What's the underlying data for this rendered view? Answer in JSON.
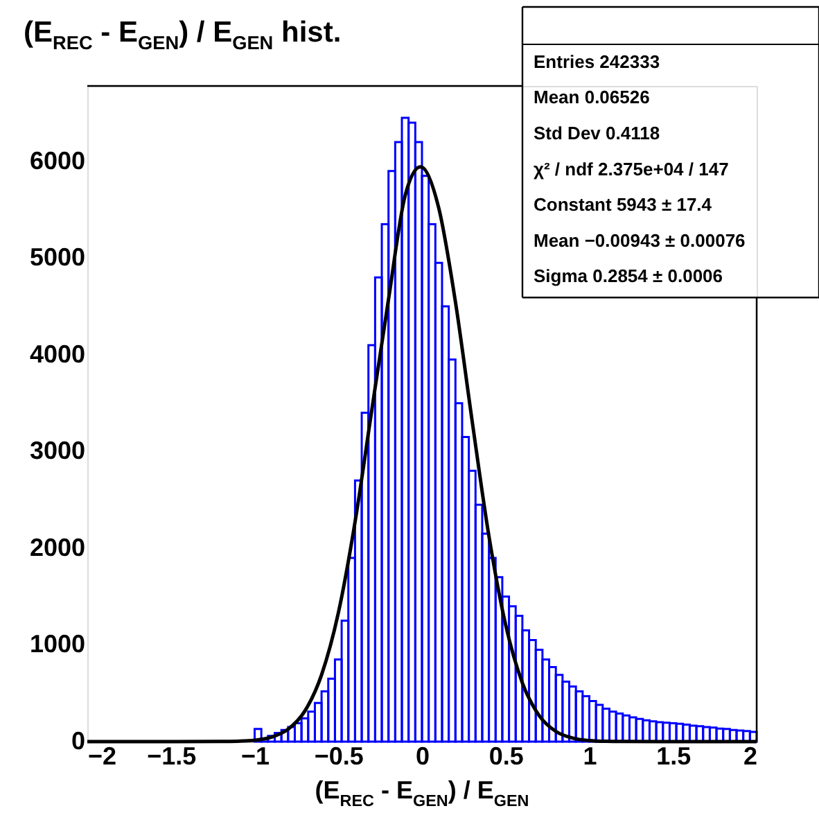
{
  "chart_data": {
    "type": "histogram",
    "title": "(E$_{REC}$ - E$_{GEN}$) / E$_{GEN}$ hist.",
    "xlabel": "(E$_{REC}$ - E$_{GEN}$) / E$_{GEN}$",
    "series": [
      {
        "type": "histogram",
        "color": "#0000ff",
        "bins": [
          -1.0,
          -0.96,
          -0.92,
          -0.88,
          -0.84,
          -0.8,
          -0.76,
          -0.72,
          -0.68,
          -0.64,
          -0.6,
          -0.56,
          -0.52,
          -0.48,
          -0.44,
          -0.4,
          -0.36,
          -0.32,
          -0.28,
          -0.24,
          -0.2,
          -0.16,
          -0.12,
          -0.08,
          -0.04,
          0.0,
          0.04,
          0.08,
          0.12,
          0.16,
          0.2,
          0.24,
          0.28,
          0.32,
          0.36,
          0.4,
          0.44,
          0.48,
          0.52,
          0.56,
          0.6,
          0.64,
          0.68,
          0.72,
          0.76,
          0.8,
          0.84,
          0.88,
          0.92,
          0.96,
          1.0,
          1.04,
          1.08,
          1.12,
          1.16,
          1.2,
          1.24,
          1.28,
          1.32,
          1.36,
          1.4,
          1.44,
          1.48,
          1.52,
          1.56,
          1.6,
          1.64,
          1.68,
          1.72,
          1.76,
          1.8,
          1.84,
          1.88,
          1.92,
          1.96,
          2.0
        ],
        "values": [
          130,
          30,
          60,
          90,
          120,
          150,
          190,
          240,
          310,
          400,
          520,
          650,
          850,
          1250,
          1900,
          2700,
          3400,
          4100,
          4800,
          5350,
          5900,
          6200,
          6450,
          6400,
          6200,
          5850,
          5350,
          4950,
          4500,
          3950,
          3500,
          3150,
          2800,
          2450,
          2150,
          1900,
          1700,
          1500,
          1400,
          1300,
          1150,
          1050,
          950,
          850,
          770,
          690,
          620,
          570,
          520,
          470,
          420,
          380,
          340,
          310,
          290,
          270,
          250,
          235,
          220,
          210,
          200,
          195,
          190,
          185,
          175,
          165,
          160,
          150,
          145,
          135,
          130,
          120,
          115,
          110,
          100
        ]
      },
      {
        "type": "line",
        "color": "#000000",
        "x": [
          -2.0,
          -1.5,
          -1.2,
          -1.1,
          -1.0,
          -0.9,
          -0.8,
          -0.7,
          -0.6,
          -0.5,
          -0.4,
          -0.3,
          -0.2,
          -0.1,
          -0.00943,
          0.0,
          0.1,
          0.2,
          0.3,
          0.4,
          0.5,
          0.6,
          0.7,
          0.8,
          0.9,
          1.0,
          1.1,
          1.2,
          1.5,
          2.0
        ],
        "values": [
          0,
          0,
          1,
          4,
          14,
          46,
          128,
          316,
          691,
          1329,
          2270,
          3426,
          4573,
          5651,
          5943,
          5940,
          5519,
          4547,
          3313,
          2126,
          1208,
          607,
          270,
          106,
          37,
          11,
          3,
          1,
          0,
          0
        ]
      }
    ],
    "xlim": [
      -2,
      2
    ],
    "xticks": [
      -2,
      -1.5,
      -1,
      -0.5,
      0,
      0.5,
      1,
      1.5,
      2
    ],
    "ylim": [
      0,
      6780
    ],
    "yticks": [
      0,
      1000,
      2000,
      3000,
      4000,
      5000,
      6000
    ],
    "grid": false,
    "annotations": [
      "Entries 242333",
      "Mean 0.06526",
      "Std Dev 0.4118",
      "χ² / ndf 2.375e+04 / 147",
      "Constant 5943 ± 17.4",
      "Mean −0.00943 ± 0.00076",
      "Sigma 0.2854 ± 0.0006"
    ]
  }
}
